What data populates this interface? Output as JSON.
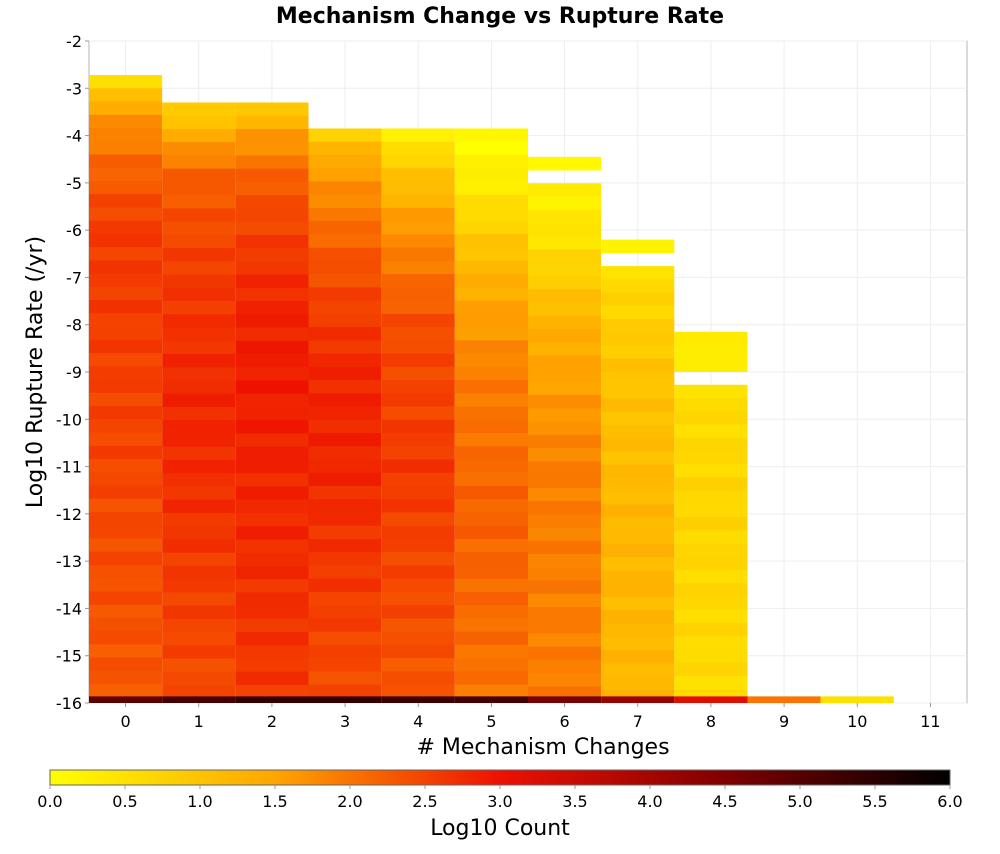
{
  "chart_data": {
    "type": "heatmap",
    "title": "Mechanism Change vs Rupture Rate",
    "xlabel": "# Mechanism Changes",
    "ylabel": "Log10 Rupture Rate (/yr)",
    "xlim": [
      -0.5,
      11.5
    ],
    "ylim": [
      -16,
      -2
    ],
    "x_ticks": [
      "0",
      "1",
      "2",
      "3",
      "4",
      "5",
      "6",
      "7",
      "8",
      "9",
      "10",
      "11"
    ],
    "y_ticks": [
      "-2",
      "-3",
      "-4",
      "-5",
      "-6",
      "-7",
      "-8",
      "-9",
      "-10",
      "-11",
      "-12",
      "-13",
      "-14",
      "-15",
      "-16"
    ],
    "grid": true,
    "y_bin_width": 0.28,
    "colorbar": {
      "label": "Log10 Count",
      "range": [
        0,
        6
      ],
      "ticks": [
        "0.0",
        "0.5",
        "1.0",
        "1.5",
        "2.0",
        "2.5",
        "3.0",
        "3.5",
        "4.0",
        "4.5",
        "5.0",
        "5.5",
        "6.0"
      ],
      "colors": [
        "#ffff00",
        "#ffa500",
        "#ee1100",
        "#800000",
        "#000000"
      ]
    },
    "columns": [
      {
        "x": 0,
        "y_top": -2.72,
        "profile": [
          [
            -2.72,
            0.3
          ],
          [
            -3.5,
            1.6
          ],
          [
            -4.5,
            2.1
          ],
          [
            -6.0,
            2.6
          ],
          [
            -10.0,
            2.5
          ],
          [
            -15.8,
            2.3
          ]
        ]
      },
      {
        "x": 1,
        "y_top": -3.3,
        "profile": [
          [
            -3.3,
            0.6
          ],
          [
            -3.9,
            1.3
          ],
          [
            -4.8,
            2.2
          ],
          [
            -7.0,
            2.6
          ],
          [
            -10.0,
            2.8
          ],
          [
            -15.8,
            2.4
          ]
        ]
      },
      {
        "x": 2,
        "y_top": -3.3,
        "profile": [
          [
            -3.3,
            0.8
          ],
          [
            -3.9,
            1.5
          ],
          [
            -5.0,
            2.3
          ],
          [
            -7.5,
            2.8
          ],
          [
            -9.0,
            2.9
          ],
          [
            -15.8,
            2.6
          ]
        ]
      },
      {
        "x": 3,
        "y_top": -3.85,
        "profile": [
          [
            -3.85,
            0.7
          ],
          [
            -4.6,
            1.5
          ],
          [
            -6.5,
            2.3
          ],
          [
            -9.0,
            2.8
          ],
          [
            -11.0,
            2.8
          ],
          [
            -15.8,
            2.4
          ]
        ]
      },
      {
        "x": 4,
        "y_top": -3.85,
        "profile": [
          [
            -3.85,
            0.0
          ],
          [
            -4.4,
            0.7
          ],
          [
            -6.0,
            1.7
          ],
          [
            -8.0,
            2.4
          ],
          [
            -11.0,
            2.6
          ],
          [
            -15.8,
            2.3
          ]
        ]
      },
      {
        "x": 5,
        "y_top": -3.85,
        "profile": [
          [
            -3.85,
            0.0
          ],
          [
            -5.0,
            0.3
          ],
          [
            -7.0,
            1.3
          ],
          [
            -9.0,
            1.9
          ],
          [
            -12.0,
            2.2
          ],
          [
            -15.8,
            2.0
          ]
        ]
      },
      {
        "x": 6,
        "y_top": -4.45,
        "profile": [
          [
            -4.45,
            0.2
          ],
          [
            -5.0,
            0.2
          ],
          [
            -6.3,
            0.5
          ],
          [
            -8.0,
            1.3
          ],
          [
            -11.0,
            1.9
          ],
          [
            -15.8,
            1.9
          ]
        ]
      },
      {
        "x": 7,
        "y_top": -6.2,
        "profile": [
          [
            -6.2,
            0.2
          ],
          [
            -7.0,
            0.6
          ],
          [
            -9.0,
            1.0
          ],
          [
            -12.0,
            1.2
          ],
          [
            -15.8,
            1.2
          ]
        ]
      },
      {
        "x": 8,
        "y_top": -8.15,
        "profile": [
          [
            -8.15,
            0.2
          ],
          [
            -9.6,
            0.6
          ],
          [
            -12.0,
            0.7
          ],
          [
            -15.8,
            0.6
          ]
        ]
      }
    ],
    "gaps": [
      {
        "x": 6,
        "y_from": -4.7,
        "y_to": -5.0
      },
      {
        "x": 7,
        "y_from": -6.5,
        "y_to": -6.7
      },
      {
        "x": 8,
        "y_from": -9.0,
        "y_to": -9.3
      }
    ],
    "bottom_row": {
      "y": -15.93,
      "values": [
        {
          "x": 0,
          "v": 4.9
        },
        {
          "x": 1,
          "v": 5.2
        },
        {
          "x": 2,
          "v": 5.4
        },
        {
          "x": 3,
          "v": 5.4
        },
        {
          "x": 4,
          "v": 5.3
        },
        {
          "x": 5,
          "v": 5.2
        },
        {
          "x": 6,
          "v": 4.6
        },
        {
          "x": 7,
          "v": 4.2
        },
        {
          "x": 8,
          "v": 3.2
        },
        {
          "x": 9,
          "v": 2.0
        },
        {
          "x": 10,
          "v": 0.5
        }
      ]
    }
  }
}
